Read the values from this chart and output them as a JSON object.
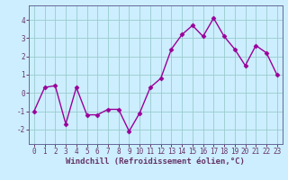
{
  "x": [
    0,
    1,
    2,
    3,
    4,
    5,
    6,
    7,
    8,
    9,
    10,
    11,
    12,
    13,
    14,
    15,
    16,
    17,
    18,
    19,
    20,
    21,
    22,
    23
  ],
  "y": [
    -1.0,
    0.3,
    0.4,
    -1.7,
    0.3,
    -1.2,
    -1.2,
    -0.9,
    -0.9,
    -2.1,
    -1.1,
    0.3,
    0.8,
    2.4,
    3.2,
    3.7,
    3.1,
    4.1,
    3.1,
    2.4,
    1.5,
    2.6,
    2.2,
    1.0
  ],
  "line_color": "#990099",
  "marker": "D",
  "markersize": 2.5,
  "linewidth": 1.0,
  "bg_color": "#cceeff",
  "grid_color": "#99cccc",
  "xlabel": "Windchill (Refroidissement éolien,°C)",
  "xlabel_fontsize": 6.5,
  "ylim": [
    -2.8,
    4.8
  ],
  "yticks": [
    -2,
    -1,
    0,
    1,
    2,
    3,
    4
  ],
  "xlim": [
    -0.5,
    23.5
  ],
  "xticks": [
    0,
    1,
    2,
    3,
    4,
    5,
    6,
    7,
    8,
    9,
    10,
    11,
    12,
    13,
    14,
    15,
    16,
    17,
    18,
    19,
    20,
    21,
    22,
    23
  ],
  "tick_fontsize": 5.5,
  "axis_color": "#663366",
  "spine_color": "#666699"
}
